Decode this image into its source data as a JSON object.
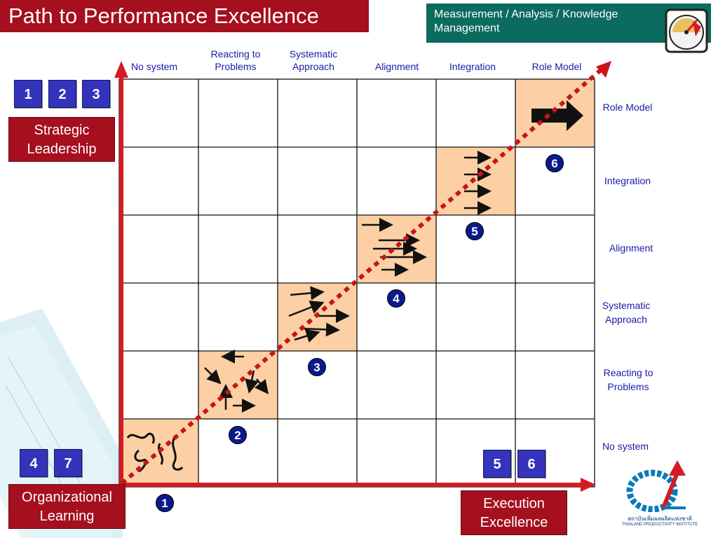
{
  "title": "Path to Performance Excellence",
  "category_box": "Measurement / Analysis / Knowledge Management",
  "column_headers": [
    "No system",
    "Reacting to Problems",
    "Systematic Approach",
    "Alignment",
    "Integration",
    "Role Model"
  ],
  "row_labels": [
    "Role Model",
    "Integration",
    "Alignment",
    "Systematic Approach",
    "Reacting to Problems",
    "No system"
  ],
  "badges_top": [
    "1",
    "2",
    "3"
  ],
  "badges_bottom_left": [
    "4",
    "7"
  ],
  "badges_bottom_right": [
    "5",
    "6"
  ],
  "strategic_leadership": "Strategic Leadership",
  "organizational_learning": "Organizational Learning",
  "execution_excellence": "Execution Excellence",
  "stage_numbers": [
    "1",
    "2",
    "3",
    "4",
    "5",
    "6"
  ],
  "logo_text": {
    "thai": "สถาบันเพิ่มผลผลิตแห่งชาติ",
    "english": "THAILAND PRODUCTIVITY INSTITUTE"
  },
  "colors": {
    "title_bg": "#a50f1e",
    "category_bg": "#0a6b5e",
    "highlight_cell": "#fcd0a4",
    "axis_red": "#d31b24",
    "label_blue": "#1a1aa8",
    "badge_blue": "#3333bb",
    "circle_navy": "#0a1a8c"
  },
  "icons": [
    "speedometer-gauge-icon",
    "thailand-productivity-institute-logo"
  ]
}
